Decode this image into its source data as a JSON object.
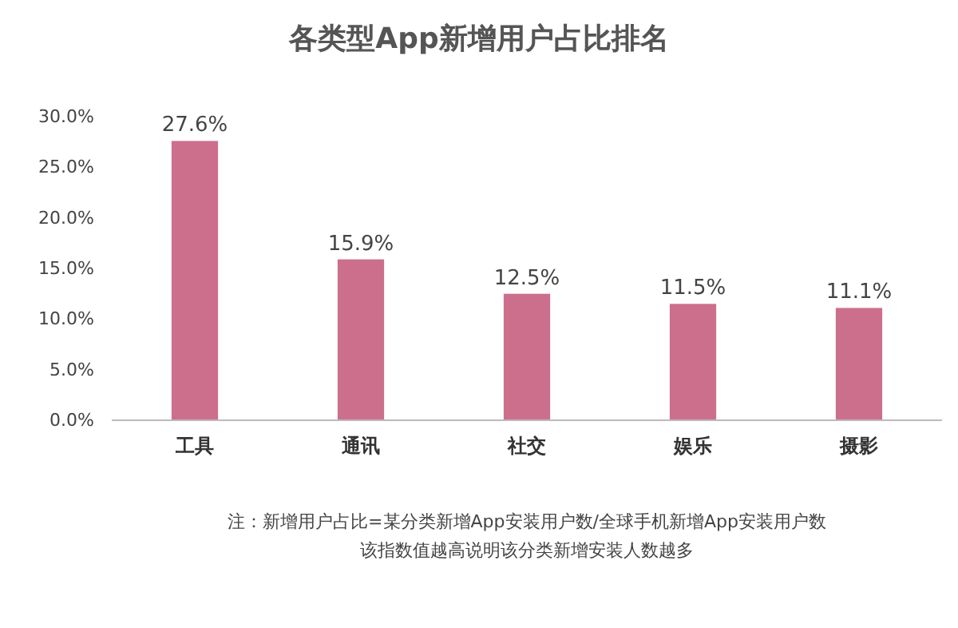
{
  "chart_data": {
    "type": "bar",
    "title": "各类型App新增用户占比排名",
    "categories": [
      "工具",
      "通讯",
      "社交",
      "娱乐",
      "摄影"
    ],
    "values": [
      27.6,
      15.9,
      12.5,
      11.5,
      11.1
    ],
    "value_labels": [
      "27.6%",
      "15.9%",
      "12.5%",
      "11.5%",
      "11.1%"
    ],
    "color": "#cc6f8c",
    "ylim": [
      0,
      30
    ],
    "yticks": [
      {
        "value": 0,
        "label": "0.0%"
      },
      {
        "value": 5,
        "label": "5.0%"
      },
      {
        "value": 10,
        "label": "10.0%"
      },
      {
        "value": 15,
        "label": "15.0%"
      },
      {
        "value": 20,
        "label": "20.0%"
      },
      {
        "value": 25,
        "label": "25.0%"
      },
      {
        "value": 30,
        "label": "30.0%"
      }
    ],
    "grid": false,
    "annotations": [
      "注：新增用户占比=某分类新增App安装用户数/全球手机新增App安装用户数",
      "该指数值越高说明该分类新增安装人数越多"
    ]
  }
}
